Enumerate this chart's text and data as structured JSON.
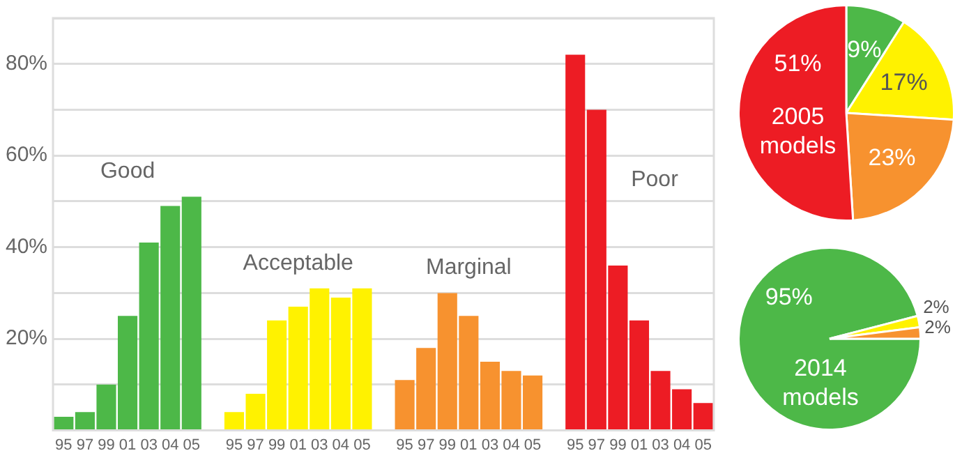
{
  "chart_data": [
    {
      "type": "bar",
      "categories": [
        "95",
        "97",
        "99",
        "01",
        "03",
        "04",
        "05",
        null,
        "95",
        "97",
        "99",
        "01",
        "03",
        "04",
        "05",
        null,
        "95",
        "97",
        "99",
        "01",
        "03",
        "04",
        "05",
        null,
        "95",
        "97",
        "99",
        "01",
        "03",
        "04",
        "05"
      ],
      "series": [
        {
          "name": "Good",
          "color": "#4db848",
          "values": [
            3,
            4,
            10,
            25,
            41,
            49,
            51,
            null,
            null,
            null,
            null,
            null,
            null,
            null,
            null,
            null,
            null,
            null,
            null,
            null,
            null,
            null,
            null,
            null,
            null,
            null,
            null,
            null,
            null,
            null,
            null
          ]
        },
        {
          "name": "Acceptable",
          "color": "#fff200",
          "values": [
            null,
            null,
            null,
            null,
            null,
            null,
            null,
            null,
            4,
            8,
            24,
            27,
            31,
            29,
            31,
            null,
            null,
            null,
            null,
            null,
            null,
            null,
            null,
            null,
            null,
            null,
            null,
            null,
            null,
            null,
            null
          ]
        },
        {
          "name": "Marginal",
          "color": "#f7922f",
          "values": [
            null,
            null,
            null,
            null,
            null,
            null,
            null,
            null,
            null,
            null,
            null,
            null,
            null,
            null,
            null,
            null,
            11,
            18,
            30,
            25,
            15,
            13,
            12,
            null,
            null,
            null,
            null,
            null,
            null,
            null,
            null
          ]
        },
        {
          "name": "Poor",
          "color": "#ed1c24",
          "values": [
            null,
            null,
            null,
            null,
            null,
            null,
            null,
            null,
            null,
            null,
            null,
            null,
            null,
            null,
            null,
            null,
            null,
            null,
            null,
            null,
            null,
            null,
            null,
            null,
            82,
            70,
            36,
            24,
            13,
            9,
            6
          ]
        }
      ],
      "ylim": [
        0,
        90
      ],
      "yticks": [
        {
          "value": 10,
          "label": null
        },
        {
          "value": 20,
          "label": "20%"
        },
        {
          "value": 30,
          "label": null
        },
        {
          "value": 40,
          "label": "40%"
        },
        {
          "value": 50,
          "label": null
        },
        {
          "value": 60,
          "label": "60%"
        },
        {
          "value": 70,
          "label": null
        },
        {
          "value": 80,
          "label": "80%"
        },
        {
          "value": 90,
          "label": null
        }
      ],
      "grid": "y",
      "legend": false
    },
    {
      "type": "pie",
      "title": "2005 models",
      "categories": [
        null,
        null,
        null,
        null
      ],
      "values": [
        9,
        17,
        23,
        51
      ],
      "colors": [
        "#4db848",
        "#fff200",
        "#f7922f",
        "#ed1c24"
      ],
      "value_labels": [
        "9%",
        "17%",
        "23%",
        "51%"
      ],
      "legend": false
    },
    {
      "type": "pie",
      "title": "2014 models",
      "categories": [
        null,
        null,
        null
      ],
      "values": [
        95,
        2,
        2
      ],
      "colors": [
        "#4db848",
        "#fff200",
        "#f7922f"
      ],
      "value_labels": [
        "95%",
        "2%",
        "2%"
      ],
      "legend": false
    }
  ]
}
